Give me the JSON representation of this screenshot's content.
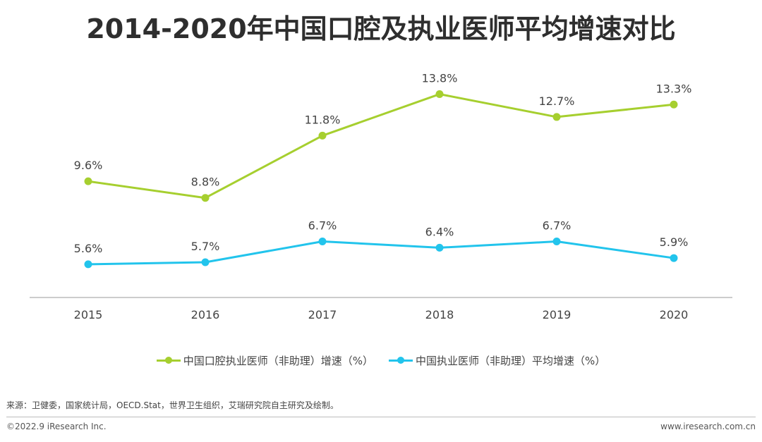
{
  "chart_data": {
    "type": "line",
    "title": "2014-2020年中国口腔及执业医师平均增速对比",
    "categories": [
      "2015",
      "2016",
      "2017",
      "2018",
      "2019",
      "2020"
    ],
    "series": [
      {
        "name": "中国口腔执业医师（非助理）增速（%）",
        "color": "#a6cf2f",
        "values": [
          9.6,
          8.8,
          11.8,
          13.8,
          12.7,
          13.3
        ],
        "labels": [
          "9.6%",
          "8.8%",
          "11.8%",
          "13.8%",
          "12.7%",
          "13.3%"
        ]
      },
      {
        "name": "中国执业医师（非助理）平均增速（%）",
        "color": "#22c4ec",
        "values": [
          5.6,
          5.7,
          6.7,
          6.4,
          6.7,
          5.9
        ],
        "labels": [
          "5.6%",
          "5.7%",
          "6.7%",
          "6.4%",
          "6.7%",
          "5.9%"
        ]
      }
    ],
    "ylim": [
      4.0,
      14.6
    ],
    "grid": false,
    "legend": "bottom"
  },
  "source": "来源：卫健委，国家统计局，OECD.Stat，世界卫生组织，艾瑞研究院自主研究及绘制。",
  "footer": {
    "copyright": "©2022.9 iResearch Inc.",
    "website": "www.iresearch.com.cn"
  }
}
